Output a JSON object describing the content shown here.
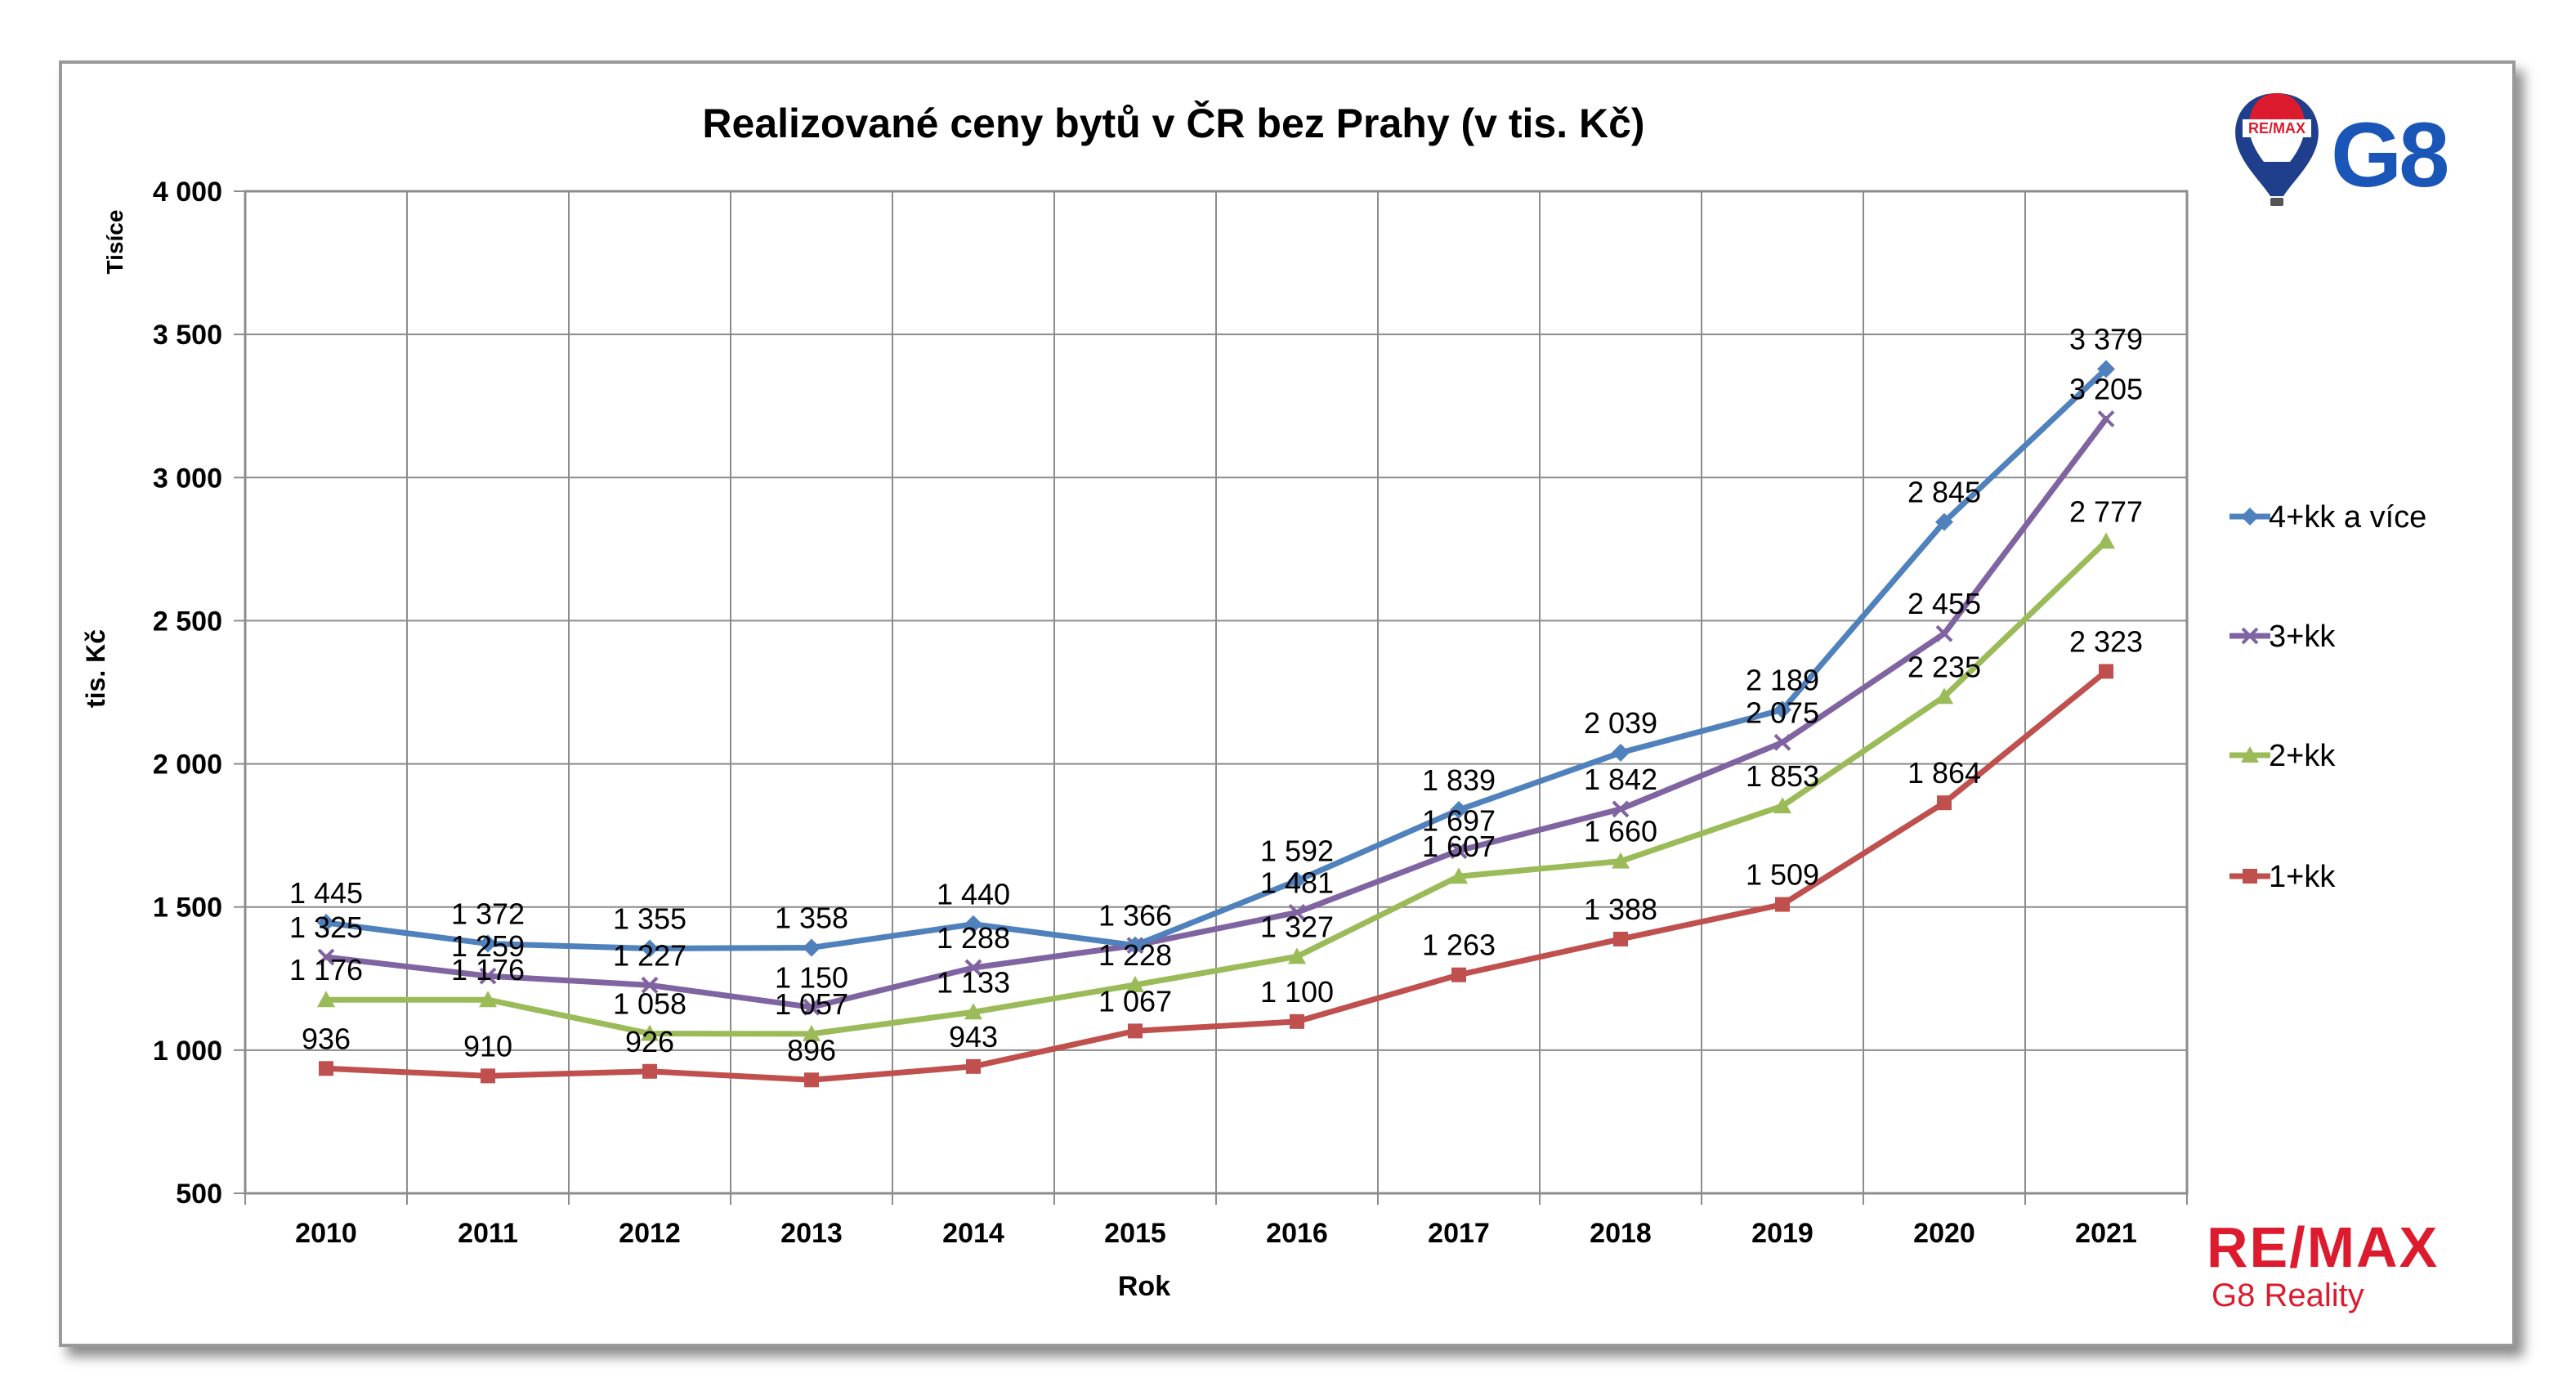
{
  "chart_data": {
    "type": "line",
    "title": "Realizované ceny bytů v ČR bez Prahy (v tis. Kč)",
    "xlabel": "Rok",
    "ylabel": "tis. Kč",
    "y_unit_label": "Tisíce",
    "categories": [
      "2010",
      "2011",
      "2012",
      "2013",
      "2014",
      "2015",
      "2016",
      "2017",
      "2018",
      "2019",
      "2020",
      "2021"
    ],
    "ylim": [
      500,
      4000
    ],
    "yticks": [
      500,
      1000,
      1500,
      2000,
      2500,
      3000,
      3500,
      4000
    ],
    "ytick_labels": [
      "500",
      "1 000",
      "1 500",
      "2 000",
      "2 500",
      "3 000",
      "3 500",
      "4 000"
    ],
    "grid": true,
    "legend_position": "right",
    "series": [
      {
        "name": "4+kk a více",
        "color": "#4f81bd",
        "marker": "diamond",
        "values": [
          1445,
          1372,
          1355,
          1358,
          1440,
          1366,
          1592,
          1839,
          2039,
          2189,
          2845,
          3379
        ],
        "labels": [
          "1 445",
          "1 372",
          "1 355",
          "1 358",
          "1 440",
          "1 366",
          "1 592",
          "1 839",
          "2 039",
          "2 189",
          "2 845",
          "3 379"
        ]
      },
      {
        "name": "3+kk",
        "color": "#8064a2",
        "marker": "x",
        "values": [
          1325,
          1259,
          1227,
          1150,
          1288,
          1366,
          1481,
          1697,
          1842,
          2075,
          2455,
          3205
        ],
        "labels": [
          "1 325",
          "1 259",
          "1 227",
          "1 150",
          "1 288",
          "",
          "1 481",
          "1 697",
          "1 842",
          "2 075",
          "2 455",
          "3 205"
        ]
      },
      {
        "name": "2+kk",
        "color": "#9bbb59",
        "marker": "triangle",
        "values": [
          1176,
          1176,
          1058,
          1057,
          1133,
          1228,
          1327,
          1607,
          1660,
          1853,
          2235,
          2777
        ],
        "labels": [
          "1 176",
          "1 176",
          "1 058",
          "1 057",
          "1 133",
          "1 228",
          "1 327",
          "1 607",
          "1 660",
          "1 853",
          "2 235",
          "2 777"
        ]
      },
      {
        "name": "1+kk",
        "color": "#c0504d",
        "marker": "square",
        "values": [
          936,
          910,
          926,
          896,
          943,
          1067,
          1100,
          1263,
          1388,
          1509,
          1864,
          2323
        ],
        "labels": [
          "936",
          "910",
          "926",
          "896",
          "943",
          "1 067",
          "1 100",
          "1 263",
          "1 388",
          "1 509",
          "1 864",
          "2 323"
        ]
      }
    ]
  },
  "branding": {
    "logo_badge_text": "RE/MAX",
    "logo_mark_text": "G8",
    "brand_name": "RE/MAX",
    "brand_sub": "G8 Reality",
    "colors": {
      "remax_red": "#dc1c2e",
      "remax_blue": "#1f3e8c",
      "g8_blue": "#1a56b8"
    }
  }
}
